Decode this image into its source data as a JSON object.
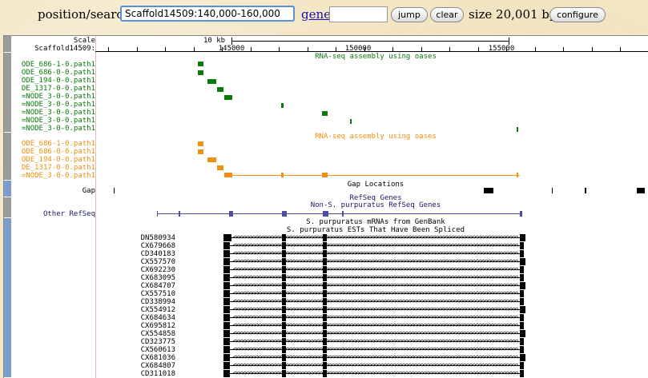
{
  "header": {
    "position_label": "position/search",
    "position_value": "Scaffold14509:140,000-160,000",
    "gene_link": "gene",
    "gene_value": "",
    "jump_button": "jump",
    "clear_button": "clear",
    "size_text": "size 20,001 bp.",
    "configure_button": "configure"
  },
  "colors": {
    "oases_green": "#0a7a0a",
    "oases_orange": "#f0900f",
    "gap_black": "#000000",
    "refseq_blue": "#4d4da6",
    "est_black": "#000000"
  },
  "ruler": {
    "scale_label": "Scale",
    "scale_text": "10 kb",
    "chrom_label": "Scaffold14509:",
    "ticks": [
      "145000",
      "150000",
      "155000"
    ]
  },
  "tracks": {
    "oases_green": {
      "title": "RNA-seq assembly using oases",
      "items": [
        "ODE_686-1-0.path1",
        "ODE_686-0-0.path1",
        "ODE_194-0-0.path1",
        "DE_1317-0-0.path1",
        "=NODE_3-0-0.path1",
        "=NODE_3-0-0.path1",
        "=NODE_3-0-0.path1",
        "=NODE_3-0-0.path1",
        "=NODE_3-0-0.path1"
      ]
    },
    "oases_orange": {
      "title": "RNA-seq assembly using oases",
      "items": [
        "ODE_686-1-0.path1",
        "ODE_686-0-0.path1",
        "ODE_194-0-0.path1",
        "DE_1317-0-0.path1",
        "=NODE_3-0-0.path1"
      ]
    },
    "gap": {
      "title": "Gap Locations",
      "label": "Gap"
    },
    "refseq": {
      "title": "RefSeq Genes",
      "subtitle": "Non-S. purpuratus RefSeq Genes",
      "label": "Other RefSeq"
    },
    "mrna": {
      "title": "S. purpuratus mRNAs from GenBank"
    },
    "est": {
      "title": "S. purpuratus ESTs That Have Been Spliced",
      "items": [
        "DN580934",
        "CX679668",
        "CD340183",
        "CX557570",
        "CX692230",
        "CX683095",
        "CX684707",
        "CX557510",
        "CD338994",
        "CX554912",
        "CX684634",
        "CX695812",
        "CX554858",
        "CD323775",
        "CX560613",
        "CX681036",
        "CX684807",
        "CD311018"
      ]
    }
  }
}
